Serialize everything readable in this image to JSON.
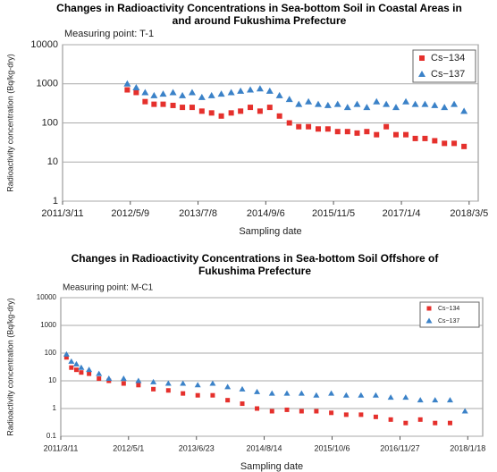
{
  "chart_data": [
    {
      "type": "scatter",
      "title": "Changes in Radioactivity Concentrations in Sea-bottom Soil in Coastal Areas in and around Fukushima Prefecture",
      "subtitle": "Measuring point: T-1",
      "xlabel": "Sampling date",
      "ylabel": "Radioactivity concentration (Bq/kg-dry)",
      "log_y": true,
      "grid": true,
      "legend": "upper right",
      "xlim": [
        "2011/3/11",
        "2018/5/1"
      ],
      "xticks": [
        "2011/3/11",
        "2012/5/9",
        "2013/7/8",
        "2014/9/6",
        "2015/11/5",
        "2017/1/4",
        "2018/3/5"
      ],
      "ylim": [
        1,
        10000
      ],
      "yticks": [
        1,
        10,
        100,
        1000,
        10000
      ],
      "x": [
        "2012/4/20",
        "2012/6/15",
        "2012/8/10",
        "2012/10/5",
        "2012/12/1",
        "2013/2/1",
        "2013/4/1",
        "2013/6/1",
        "2013/8/1",
        "2013/10/1",
        "2013/12/1",
        "2014/2/1",
        "2014/4/1",
        "2014/6/1",
        "2014/8/1",
        "2014/10/1",
        "2014/12/1",
        "2015/2/1",
        "2015/4/1",
        "2015/6/1",
        "2015/8/1",
        "2015/10/1",
        "2015/12/1",
        "2016/2/1",
        "2016/4/1",
        "2016/6/1",
        "2016/8/1",
        "2016/10/1",
        "2016/12/1",
        "2017/2/1",
        "2017/4/1",
        "2017/6/1",
        "2017/8/1",
        "2017/10/1",
        "2017/12/1",
        "2018/2/1"
      ],
      "series": [
        {
          "name": "Cs−134",
          "color": "#e5302c",
          "marker": "square",
          "values": [
            700,
            600,
            350,
            300,
            300,
            280,
            250,
            250,
            200,
            180,
            150,
            180,
            200,
            250,
            200,
            250,
            150,
            100,
            80,
            80,
            70,
            70,
            60,
            60,
            55,
            60,
            50,
            80,
            50,
            50,
            40,
            40,
            35,
            30,
            30,
            25
          ]
        },
        {
          "name": "Cs−137",
          "color": "#3b82c8",
          "marker": "triangle",
          "values": [
            1000,
            800,
            600,
            500,
            550,
            600,
            500,
            600,
            450,
            500,
            550,
            600,
            650,
            700,
            750,
            650,
            500,
            400,
            300,
            350,
            300,
            280,
            300,
            250,
            300,
            250,
            350,
            300,
            250,
            350,
            300,
            300,
            280,
            250,
            300,
            200
          ]
        }
      ]
    },
    {
      "type": "scatter",
      "title": "Changes in Radioactivity Concentrations in Sea-bottom Soil Offshore of Fukushima Prefecture",
      "subtitle": "Measuring point: M-C1",
      "xlabel": "Sampling date",
      "ylabel": "Radioactivity concentration (Bq/kg-dry)",
      "log_y": true,
      "grid": true,
      "legend": "upper right",
      "xlim": [
        "2011/3/11",
        "2018/4/20"
      ],
      "xticks": [
        "2011/3/11",
        "2012/5/1",
        "2013/6/23",
        "2014/8/14",
        "2015/10/6",
        "2016/11/27",
        "2018/1/18"
      ],
      "ylim": [
        0.1,
        10000
      ],
      "yticks": [
        0.1,
        1,
        10,
        100,
        1000,
        10000
      ],
      "x": [
        "2011/4/15",
        "2011/5/15",
        "2011/6/15",
        "2011/7/15",
        "2011/9/1",
        "2011/11/1",
        "2012/1/1",
        "2012/4/1",
        "2012/7/1",
        "2012/10/1",
        "2013/1/1",
        "2013/4/1",
        "2013/7/1",
        "2013/10/1",
        "2014/1/1",
        "2014/4/1",
        "2014/7/1",
        "2014/10/1",
        "2015/1/1",
        "2015/4/1",
        "2015/7/1",
        "2015/10/1",
        "2016/1/1",
        "2016/4/1",
        "2016/7/1",
        "2016/10/1",
        "2017/1/1",
        "2017/4/1",
        "2017/7/1",
        "2017/10/1",
        "2018/1/1"
      ],
      "series": [
        {
          "name": "Cs−134",
          "color": "#e5302c",
          "marker": "square",
          "values": [
            70,
            30,
            25,
            20,
            18,
            12,
            10,
            8,
            7,
            5,
            4.5,
            3.5,
            3,
            3,
            2,
            1.5,
            1,
            0.8,
            0.9,
            0.8,
            0.8,
            0.7,
            0.6,
            0.6,
            0.5,
            0.4,
            0.3,
            0.4,
            0.3,
            0.3,
            null
          ]
        },
        {
          "name": "Cs−137",
          "color": "#3b82c8",
          "marker": "triangle",
          "values": [
            90,
            50,
            40,
            30,
            25,
            18,
            12,
            12,
            10,
            9,
            8,
            8,
            7,
            8,
            6,
            5,
            4,
            3.5,
            3.5,
            3.5,
            3,
            3.5,
            3,
            3,
            3,
            2.5,
            2.5,
            2,
            2,
            2,
            0.8
          ]
        }
      ]
    }
  ]
}
